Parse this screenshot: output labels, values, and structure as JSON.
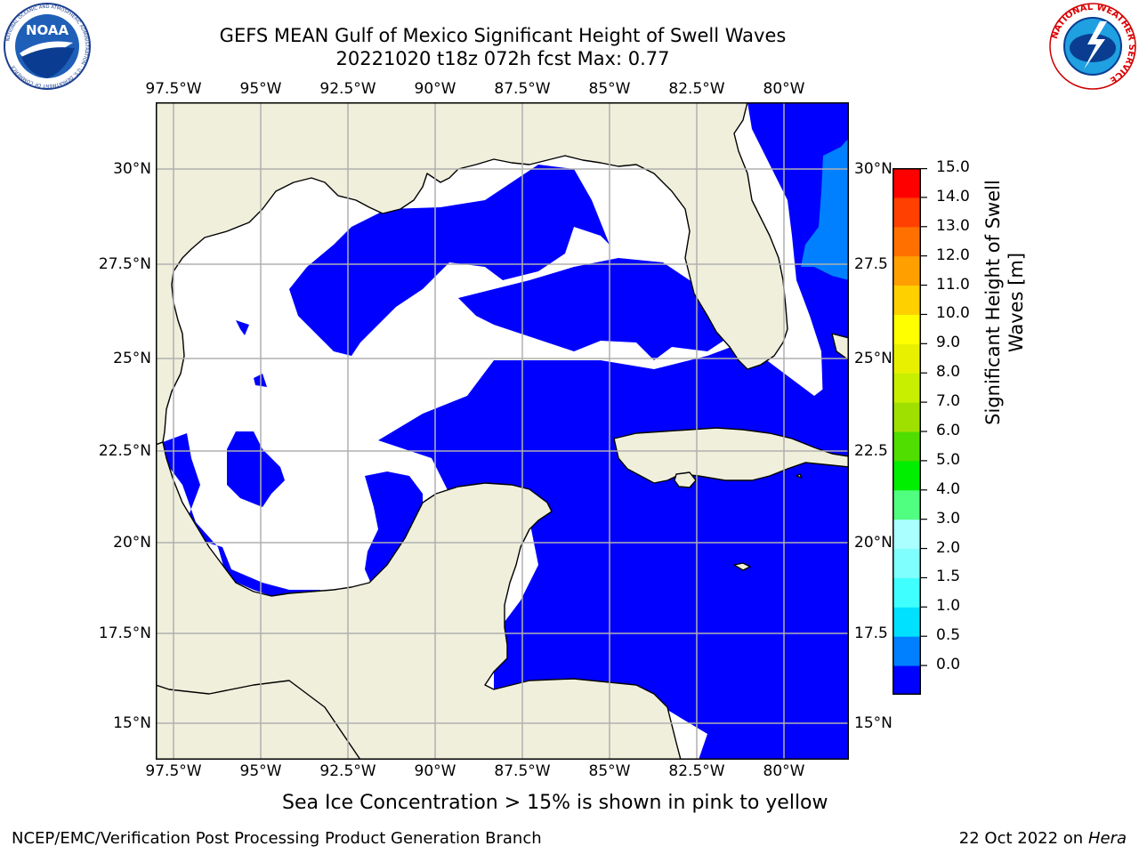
{
  "header": {
    "title_line1": "GEFS MEAN Gulf of Mexico Significant Height of Swell Waves",
    "title_line2": "20221020 t18z 072h fcst   Max: 0.77"
  },
  "logos": {
    "noaa_text": "NOAA",
    "noaa_ring_text": "NATIONAL OCEANIC AND ATMOSPHERIC ADMINISTRATION · U.S. DEPARTMENT OF COMMERCE",
    "nws_ring_text": "NATIONAL WEATHER SERVICE"
  },
  "map": {
    "lon_labels": [
      "97.5°W",
      "95°W",
      "92.5°W",
      "90°W",
      "87.5°W",
      "85°W",
      "82.5°W",
      "80°W"
    ],
    "lat_labels": [
      "30°N",
      "27.5°N",
      "25°N",
      "22.5°N",
      "20°N",
      "17.5°N",
      "15°N"
    ],
    "lat_labels_right": [
      "30°N",
      "27.5",
      "25°N",
      "22.5",
      "20°N",
      "17.5",
      "15°N"
    ],
    "land_color": "#efefdc",
    "grid_color": "#b0b0b0"
  },
  "colorbar": {
    "label": "Significant Height of Swell Waves [m]",
    "label_line1": "Significant Height of Swell",
    "label_line2": "Waves [m]",
    "ticks": [
      "15.0",
      "14.0",
      "13.0",
      "12.0",
      "11.0",
      "10.0",
      "9.0",
      "8.0",
      "7.0",
      "6.0",
      "5.0",
      "4.0",
      "3.0",
      "2.0",
      "1.5",
      "1.0",
      "0.5",
      "0.0"
    ],
    "colors": [
      "#0000ff",
      "#0080ff",
      "#00e0ff",
      "#40ffff",
      "#80ffff",
      "#aaffff",
      "#50ff80",
      "#00ee00",
      "#50dd00",
      "#a0e000",
      "#c8ee00",
      "#e8f000",
      "#ffff00",
      "#ffd000",
      "#ffa000",
      "#ff7000",
      "#ff4000",
      "#ff0000"
    ]
  },
  "note": "Sea Ice Concentration > 15% is shown in pink to yellow",
  "footer": {
    "left": "NCEP/EMC/Verification Post Processing Product Generation Branch",
    "right_prefix": "22 Oct 2022 on ",
    "right_host": "Hera"
  }
}
